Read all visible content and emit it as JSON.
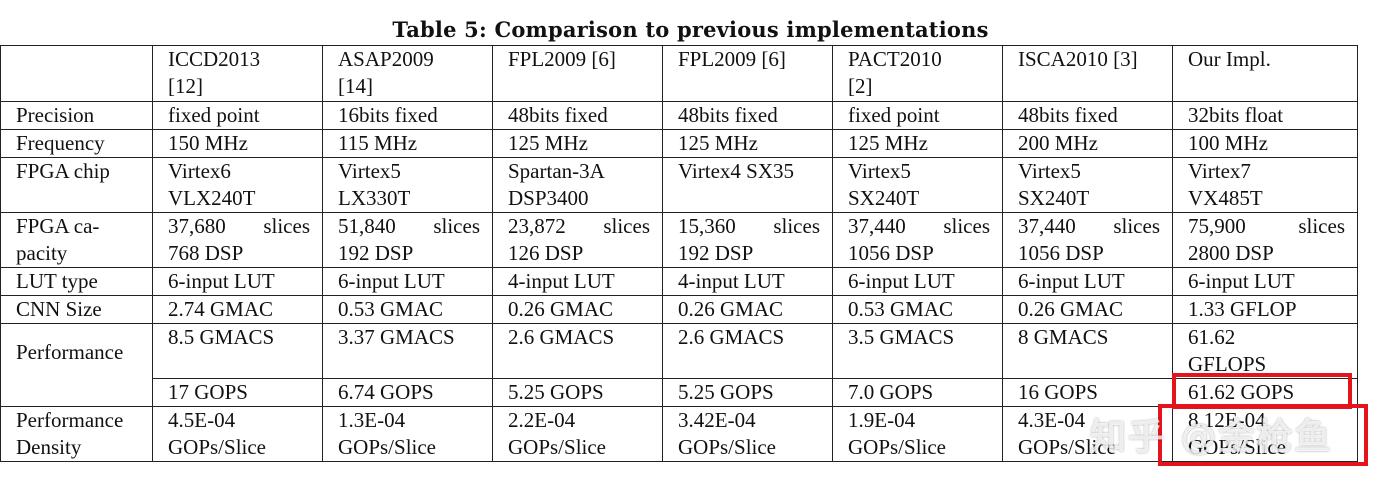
{
  "caption": "Table 5: Comparison to previous implementations",
  "header": [
    "",
    "ICCD2013 [12]",
    "ASAP2009 [14]",
    "FPL2009 [6]",
    "FPL2009 [6]",
    "PACT2010 [2]",
    "ISCA2010 [3]",
    "Our Impl."
  ],
  "rows": {
    "precision": {
      "label": "Precision",
      "values": [
        "fixed point",
        "16bits fixed",
        "48bits fixed",
        "48bits fixed",
        "fixed point",
        "48bits fixed",
        "32bits float"
      ]
    },
    "frequency": {
      "label": "Frequency",
      "values": [
        "150 MHz",
        "115 MHz",
        "125 MHz",
        "125 MHz",
        "125 MHz",
        "200 MHz",
        "100 MHz"
      ]
    },
    "fpga_chip": {
      "label": "FPGA chip",
      "values": [
        [
          "Virtex6",
          "VLX240T"
        ],
        [
          "Virtex5",
          "LX330T"
        ],
        [
          "Spartan-3A",
          "DSP3400"
        ],
        [
          "Virtex4 SX35",
          ""
        ],
        [
          "Virtex5",
          "SX240T"
        ],
        [
          "Virtex5",
          "SX240T"
        ],
        [
          "Virtex7",
          "VX485T"
        ]
      ]
    },
    "fpga_capacity": {
      "label": [
        "FPGA ca-",
        "pacity"
      ],
      "values": [
        [
          "37,680",
          "slices",
          "768 DSP"
        ],
        [
          "51,840",
          "slices",
          "192 DSP"
        ],
        [
          "23,872",
          "slices",
          "126 DSP"
        ],
        [
          "15,360",
          "slices",
          "192 DSP"
        ],
        [
          "37,440",
          "slices",
          "1056 DSP"
        ],
        [
          "37,440",
          "slices",
          "1056 DSP"
        ],
        [
          "75,900",
          "slices",
          "2800 DSP"
        ]
      ]
    },
    "lut_type": {
      "label": "LUT type",
      "values": [
        "6-input LUT",
        "6-input LUT",
        "4-input LUT",
        "4-input LUT",
        "6-input LUT",
        "6-input LUT",
        "6-input LUT"
      ]
    },
    "cnn_size": {
      "label": "CNN Size",
      "values": [
        "2.74 GMAC",
        "0.53 GMAC",
        "0.26 GMAC",
        "0.26 GMAC",
        "0.53 GMAC",
        "0.26 GMAC",
        "1.33 GFLOP"
      ]
    },
    "performance": {
      "label": "Performance",
      "values_a": [
        "8.5 GMACS",
        "3.37 GMACS",
        "2.6 GMACS",
        "2.6 GMACS",
        "3.5 GMACS",
        "8 GMACS",
        "61.62"
      ],
      "our_a_line2": "GFLOPS",
      "values_b": [
        "17 GOPS",
        "6.74 GOPS",
        "5.25 GOPS",
        "5.25 GOPS",
        "7.0 GOPS",
        "16 GOPS",
        "61.62 GOPS"
      ]
    },
    "perf_density": {
      "label": [
        "Performance",
        "Density"
      ],
      "values": [
        [
          "4.5E-04",
          "GOPs/Slice"
        ],
        [
          "1.3E-04",
          "GOPs/Slice"
        ],
        [
          "2.2E-04",
          "GOPs/Slice"
        ],
        [
          "3.42E-04",
          "GOPs/Slice"
        ],
        [
          "1.9E-04",
          "GOPs/Slice"
        ],
        [
          "4.3E-04",
          "GOPs/Slice"
        ],
        [
          "8.12E-04",
          "GOPs/Slice"
        ]
      ]
    }
  },
  "watermark": "知乎 @金枪鱼",
  "highlight_color": "#e3141b"
}
